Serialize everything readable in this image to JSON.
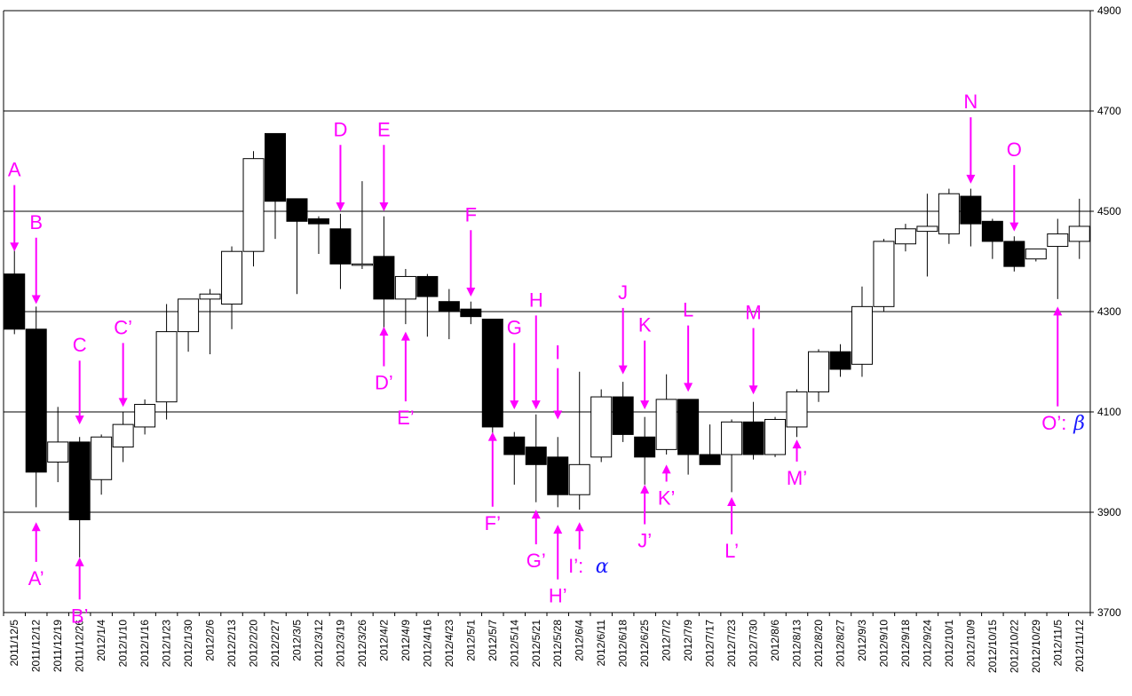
{
  "chart_data": {
    "type": "candlestick",
    "ylim": [
      3700,
      4900
    ],
    "yticks": [
      "3700",
      "3900",
      "4100",
      "4300",
      "4500",
      "4700",
      "4900"
    ],
    "grid": "horizontal",
    "colors": {
      "up": "#ffffff",
      "down": "#000000",
      "annotation": "#ff00ff",
      "greek": "#1a1aff",
      "grid": "#000000"
    },
    "categories": [
      "2011/12/5",
      "2011/12/12",
      "2011/12/19",
      "2011/12/26",
      "2012/1/4",
      "2012/1/10",
      "2012/1/16",
      "2012/1/23",
      "2012/1/30",
      "2012/2/6",
      "2012/2/13",
      "2012/2/20",
      "2012/2/27",
      "2012/3/5",
      "2012/3/12",
      "2012/3/19",
      "2012/3/26",
      "2012/4/2",
      "2012/4/9",
      "2012/4/16",
      "2012/4/23",
      "2012/5/1",
      "2012/5/7",
      "2012/5/14",
      "2012/5/21",
      "2012/5/28",
      "2012/6/4",
      "2012/6/11",
      "2012/6/18",
      "2012/6/25",
      "2012/7/2",
      "2012/7/9",
      "2012/7/17",
      "2012/7/23",
      "2012/7/30",
      "2012/8/6",
      "2012/8/13",
      "2012/8/20",
      "2012/8/27",
      "2012/9/3",
      "2012/9/10",
      "2012/9/18",
      "2012/9/24",
      "2012/10/1",
      "2012/10/9",
      "2012/10/15",
      "2012/10/22",
      "2012/10/29",
      "2012/11/5",
      "2012/11/12"
    ],
    "ohlc": [
      [
        4375,
        4425,
        4255,
        4265
      ],
      [
        4265,
        4310,
        3910,
        3980
      ],
      [
        4000,
        4110,
        3960,
        4040
      ],
      [
        4040,
        4050,
        3810,
        3885
      ],
      [
        3965,
        4055,
        3935,
        4050
      ],
      [
        4030,
        4100,
        4000,
        4075
      ],
      [
        4070,
        4125,
        4055,
        4115
      ],
      [
        4120,
        4315,
        4085,
        4260
      ],
      [
        4260,
        4325,
        4220,
        4325
      ],
      [
        4325,
        4345,
        4215,
        4335
      ],
      [
        4315,
        4430,
        4265,
        4420
      ],
      [
        4420,
        4620,
        4390,
        4605
      ],
      [
        4655,
        4655,
        4445,
        4520
      ],
      [
        4525,
        4525,
        4335,
        4480
      ],
      [
        4485,
        4490,
        4415,
        4475
      ],
      [
        4465,
        4495,
        4345,
        4395
      ],
      [
        4395,
        4560,
        4385,
        4395
      ],
      [
        4410,
        4490,
        4265,
        4325
      ],
      [
        4325,
        4385,
        4275,
        4370
      ],
      [
        4370,
        4375,
        4250,
        4330
      ],
      [
        4320,
        4345,
        4245,
        4300
      ],
      [
        4305,
        4320,
        4275,
        4290
      ],
      [
        4285,
        4285,
        4045,
        4070
      ],
      [
        4050,
        4060,
        3955,
        4015
      ],
      [
        4030,
        4095,
        3920,
        3995
      ],
      [
        4010,
        4050,
        3910,
        3935
      ],
      [
        3935,
        4180,
        3905,
        3995
      ],
      [
        4010,
        4145,
        4000,
        4130
      ],
      [
        4130,
        4160,
        4040,
        4055
      ],
      [
        4050,
        4090,
        3955,
        4010
      ],
      [
        4025,
        4175,
        4015,
        4125
      ],
      [
        4125,
        4125,
        3975,
        4015
      ],
      [
        4015,
        4075,
        4000,
        3995
      ],
      [
        4015,
        4085,
        3940,
        4080
      ],
      [
        4080,
        4120,
        4005,
        4015
      ],
      [
        4015,
        4090,
        4010,
        4085
      ],
      [
        4070,
        4145,
        4050,
        4140
      ],
      [
        4140,
        4225,
        4120,
        4220
      ],
      [
        4220,
        4235,
        4170,
        4185
      ],
      [
        4195,
        4350,
        4170,
        4310
      ],
      [
        4310,
        4445,
        4300,
        4440
      ],
      [
        4435,
        4475,
        4420,
        4465
      ],
      [
        4460,
        4535,
        4370,
        4470
      ],
      [
        4455,
        4545,
        4435,
        4535
      ],
      [
        4530,
        4545,
        4430,
        4475
      ],
      [
        4480,
        4485,
        4405,
        4440
      ],
      [
        4440,
        4450,
        4380,
        4390
      ],
      [
        4405,
        4425,
        4400,
        4425
      ],
      [
        4430,
        4485,
        4325,
        4455
      ],
      [
        4440,
        4525,
        4405,
        4470
      ]
    ],
    "annotations": [
      {
        "label": "A",
        "index": 0,
        "dir": "down",
        "at": 4420,
        "textv": 4570
      },
      {
        "label": "A’",
        "index": 1,
        "dir": "up",
        "at": 3880,
        "textv": 3755
      },
      {
        "label": "B",
        "index": 1,
        "dir": "down",
        "at": 4315,
        "textv": 4465
      },
      {
        "label": "B’",
        "index": 3,
        "dir": "up",
        "at": 3810,
        "textv": 3680
      },
      {
        "label": "C",
        "index": 3,
        "dir": "down",
        "at": 4075,
        "textv": 4220
      },
      {
        "label": "C’",
        "index": 5,
        "dir": "down",
        "at": 4110,
        "textv": 4255
      },
      {
        "label": "D",
        "index": 15,
        "dir": "down",
        "at": 4500,
        "textv": 4650
      },
      {
        "label": "D’",
        "index": 17,
        "dir": "up",
        "at": 4270,
        "textv": 4145
      },
      {
        "label": "E",
        "index": 17,
        "dir": "down",
        "at": 4500,
        "textv": 4650
      },
      {
        "label": "E’",
        "index": 18,
        "dir": "up",
        "at": 4260,
        "textv": 4075
      },
      {
        "label": "F",
        "index": 21,
        "dir": "down",
        "at": 4330,
        "textv": 4480
      },
      {
        "label": "F’",
        "index": 22,
        "dir": "up",
        "at": 4060,
        "textv": 3865
      },
      {
        "label": "G",
        "index": 23,
        "dir": "down",
        "at": 4105,
        "textv": 4255
      },
      {
        "label": "G’",
        "index": 24,
        "dir": "up",
        "at": 3905,
        "textv": 3790
      },
      {
        "label": "H",
        "index": 24,
        "dir": "down",
        "at": 4105,
        "textv": 4310
      },
      {
        "label": "H’",
        "index": 25,
        "dir": "up",
        "at": 3875,
        "textv": 3720
      },
      {
        "label": "I",
        "index": 25,
        "dir": "down",
        "at": 4085,
        "textv": 4205
      },
      {
        "label": "I’:",
        "index": 26,
        "dir": "up",
        "at": 3880,
        "textv": 3780,
        "greek": "α"
      },
      {
        "label": "J",
        "index": 28,
        "dir": "down",
        "at": 4175,
        "textv": 4325
      },
      {
        "label": "J’",
        "index": 29,
        "dir": "up",
        "at": 3955,
        "textv": 3830
      },
      {
        "label": "K",
        "index": 29,
        "dir": "down",
        "at": 4105,
        "textv": 4260
      },
      {
        "label": "K’",
        "index": 30,
        "dir": "up",
        "at": 3995,
        "textv": 3915
      },
      {
        "label": "L",
        "index": 31,
        "dir": "down",
        "at": 4140,
        "textv": 4290
      },
      {
        "label": "L’",
        "index": 33,
        "dir": "up",
        "at": 3930,
        "textv": 3810
      },
      {
        "label": "M",
        "index": 34,
        "dir": "down",
        "at": 4135,
        "textv": 4285
      },
      {
        "label": "M’",
        "index": 36,
        "dir": "up",
        "at": 4045,
        "textv": 3955
      },
      {
        "label": "N",
        "index": 44,
        "dir": "down",
        "at": 4555,
        "textv": 4705
      },
      {
        "label": "O",
        "index": 46,
        "dir": "down",
        "at": 4460,
        "textv": 4610
      },
      {
        "label": "O’:",
        "index": 48,
        "dir": "up",
        "at": 4310,
        "textv": 4065,
        "greek": "β"
      }
    ]
  }
}
